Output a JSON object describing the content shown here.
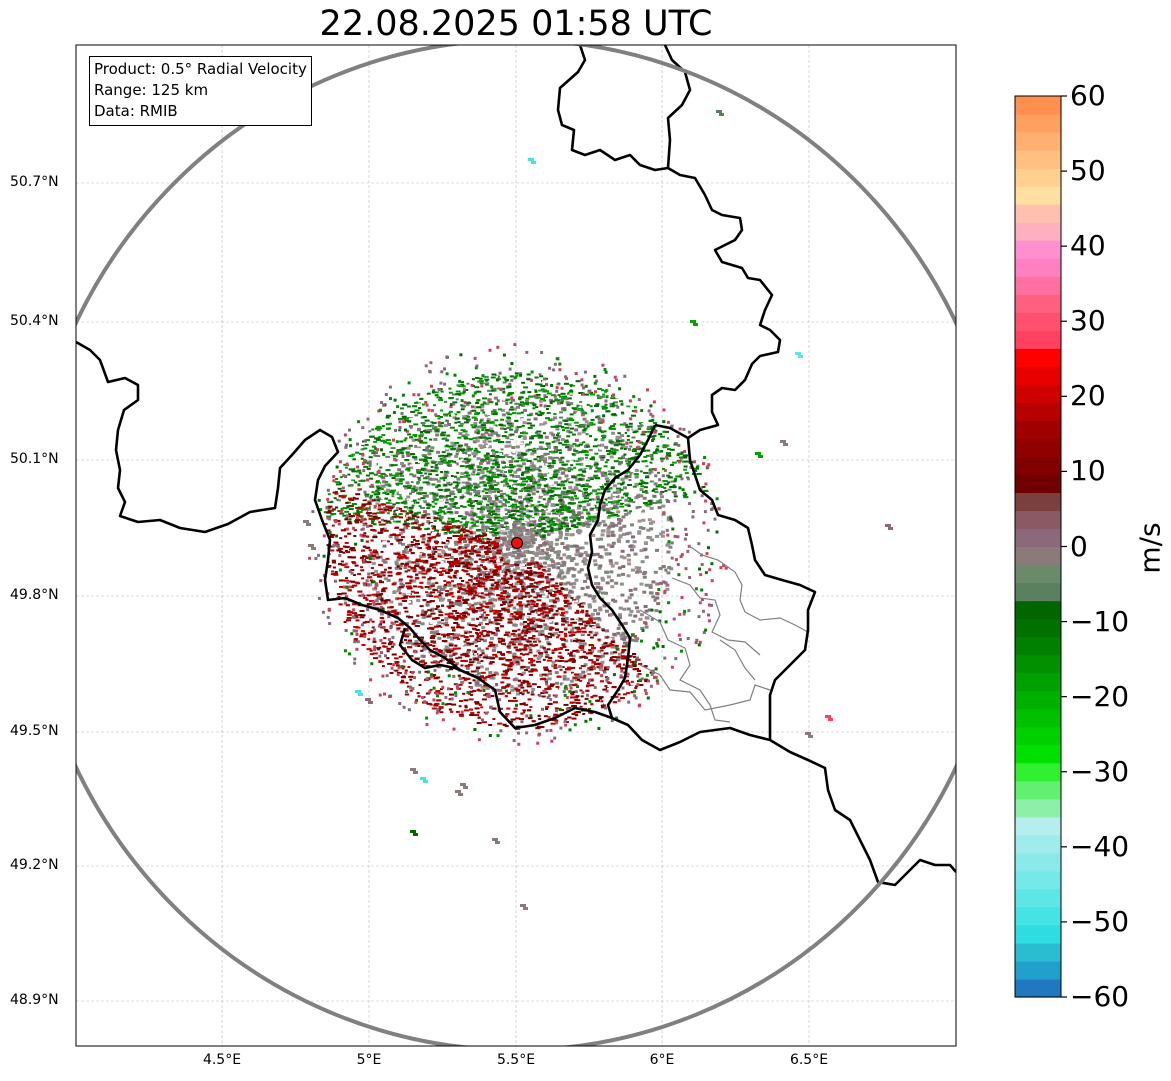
{
  "title": "22.08.2025 01:58 UTC",
  "info": {
    "product": "Product: 0.5° Radial Velocity",
    "range": "Range: 125 km",
    "data": "Data: RMIB"
  },
  "axes": {
    "lat_labels": [
      "50.7°N",
      "50.4°N",
      "50.1°N",
      "49.8°N",
      "49.5°N",
      "49.2°N",
      "48.9°N"
    ],
    "lon_labels": [
      "4.5°E",
      "5°E",
      "5.5°E",
      "6°E",
      "6.5°E"
    ]
  },
  "colorbar": {
    "unit": "m/s",
    "ticks": [
      "60",
      "50",
      "40",
      "30",
      "20",
      "10",
      "0",
      "−10",
      "−20",
      "−30",
      "−40",
      "−50",
      "−60"
    ],
    "min": -60,
    "max": 60,
    "colors": [
      "#1f78c0",
      "#22a0cc",
      "#2abccf",
      "#2fdde0",
      "#45e3e3",
      "#5ee6e6",
      "#75e8e8",
      "#8aeaea",
      "#a0ecec",
      "#b6eeee",
      "#8ef0a8",
      "#62f070",
      "#30f030",
      "#00e000",
      "#00d000",
      "#00c000",
      "#00b000",
      "#00a000",
      "#009000",
      "#008000",
      "#007000",
      "#006600",
      "#5a8060",
      "#6a8a6a",
      "#8a7a7a",
      "#8a6a7a",
      "#8a5a64",
      "#7a4040",
      "#700000",
      "#800000",
      "#900000",
      "#a00000",
      "#b80000",
      "#d00000",
      "#e80000",
      "#ff0000",
      "#ff4060",
      "#ff5070",
      "#ff6080",
      "#ff70a0",
      "#ff80c0",
      "#ff90d0",
      "#ffb0c0",
      "#ffc0b0",
      "#ffe0a0",
      "#ffd090",
      "#ffc080",
      "#ffb070",
      "#ffa060",
      "#ff9050"
    ]
  },
  "radar": {
    "site_lon": 5.505,
    "site_lat": 49.914,
    "range_km": 125
  }
}
